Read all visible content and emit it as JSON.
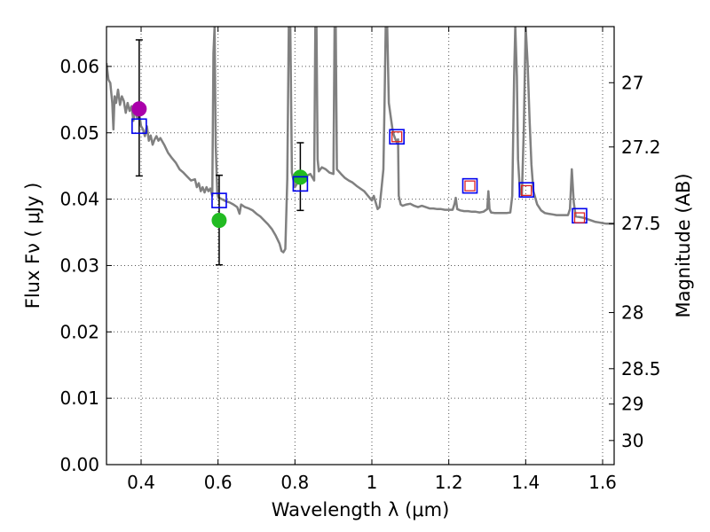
{
  "chart_data": {
    "type": "scatter",
    "xlabel": "Wavelength  λ (μm)",
    "ylabel": "Flux  Fν  ( μJy )",
    "y2label": "Magnitude (AB)",
    "xlim": [
      0.31,
      1.63
    ],
    "ylim": [
      0.0,
      0.066
    ],
    "grid": true,
    "x_ticks": [
      {
        "v": 0.4,
        "label": "0.4"
      },
      {
        "v": 0.6,
        "label": "0.6"
      },
      {
        "v": 0.8,
        "label": "0.8"
      },
      {
        "v": 1.0,
        "label": "1"
      },
      {
        "v": 1.2,
        "label": "1.2"
      },
      {
        "v": 1.4,
        "label": "1.4"
      },
      {
        "v": 1.6,
        "label": "1.6"
      }
    ],
    "y_ticks": [
      {
        "v": 0.0,
        "label": "0.00"
      },
      {
        "v": 0.01,
        "label": "0.01"
      },
      {
        "v": 0.02,
        "label": "0.02"
      },
      {
        "v": 0.03,
        "label": "0.03"
      },
      {
        "v": 0.04,
        "label": "0.04"
      },
      {
        "v": 0.05,
        "label": "0.05"
      },
      {
        "v": 0.06,
        "label": "0.06"
      }
    ],
    "y2_ticks": [
      {
        "v": 27.0,
        "label": "27"
      },
      {
        "v": 27.2,
        "label": "27.2"
      },
      {
        "v": 27.5,
        "label": "27.5"
      },
      {
        "v": 28.0,
        "label": "28"
      },
      {
        "v": 28.5,
        "label": "28.5"
      },
      {
        "v": 29.0,
        "label": "29"
      },
      {
        "v": 30.0,
        "label": "30"
      }
    ],
    "model_spectrum": {
      "name": "SED model",
      "color": "#808080",
      "points": [
        [
          0.31,
          0.0605
        ],
        [
          0.315,
          0.058
        ],
        [
          0.32,
          0.0575
        ],
        [
          0.325,
          0.0545
        ],
        [
          0.328,
          0.0505
        ],
        [
          0.331,
          0.0555
        ],
        [
          0.335,
          0.0545
        ],
        [
          0.34,
          0.0565
        ],
        [
          0.345,
          0.0542
        ],
        [
          0.35,
          0.0555
        ],
        [
          0.355,
          0.0548
        ],
        [
          0.36,
          0.053
        ],
        [
          0.365,
          0.0545
        ],
        [
          0.37,
          0.0533
        ],
        [
          0.375,
          0.054
        ],
        [
          0.38,
          0.0518
        ],
        [
          0.385,
          0.0535
        ],
        [
          0.39,
          0.0522
        ],
        [
          0.395,
          0.053
        ],
        [
          0.4,
          0.051
        ],
        [
          0.405,
          0.0505
        ],
        [
          0.41,
          0.0495
        ],
        [
          0.415,
          0.051
        ],
        [
          0.42,
          0.0488
        ],
        [
          0.425,
          0.0496
        ],
        [
          0.43,
          0.0482
        ],
        [
          0.435,
          0.049
        ],
        [
          0.44,
          0.0495
        ],
        [
          0.445,
          0.0488
        ],
        [
          0.45,
          0.0492
        ],
        [
          0.46,
          0.0482
        ],
        [
          0.47,
          0.047
        ],
        [
          0.48,
          0.0462
        ],
        [
          0.49,
          0.0455
        ],
        [
          0.5,
          0.0445
        ],
        [
          0.51,
          0.044
        ],
        [
          0.52,
          0.0434
        ],
        [
          0.53,
          0.0428
        ],
        [
          0.54,
          0.043
        ],
        [
          0.545,
          0.0418
        ],
        [
          0.55,
          0.0424
        ],
        [
          0.555,
          0.0412
        ],
        [
          0.56,
          0.0418
        ],
        [
          0.565,
          0.041
        ],
        [
          0.57,
          0.0418
        ],
        [
          0.575,
          0.0412
        ],
        [
          0.58,
          0.0416
        ],
        [
          0.585,
          0.0405
        ],
        [
          0.588,
          0.062
        ],
        [
          0.591,
          0.066
        ],
        [
          0.594,
          0.048
        ],
        [
          0.598,
          0.041
        ],
        [
          0.6,
          0.0403
        ],
        [
          0.61,
          0.04
        ],
        [
          0.62,
          0.0397
        ],
        [
          0.63,
          0.0395
        ],
        [
          0.64,
          0.0392
        ],
        [
          0.65,
          0.0388
        ],
        [
          0.656,
          0.0378
        ],
        [
          0.66,
          0.0392
        ],
        [
          0.67,
          0.0388
        ],
        [
          0.68,
          0.0386
        ],
        [
          0.69,
          0.0383
        ],
        [
          0.7,
          0.0378
        ],
        [
          0.71,
          0.0374
        ],
        [
          0.72,
          0.0368
        ],
        [
          0.73,
          0.0362
        ],
        [
          0.74,
          0.0355
        ],
        [
          0.75,
          0.0345
        ],
        [
          0.76,
          0.0333
        ],
        [
          0.765,
          0.0322
        ],
        [
          0.77,
          0.032
        ],
        [
          0.775,
          0.0325
        ],
        [
          0.78,
          0.043
        ],
        [
          0.784,
          0.066
        ],
        [
          0.788,
          0.066
        ],
        [
          0.792,
          0.044
        ],
        [
          0.8,
          0.0418
        ],
        [
          0.81,
          0.0428
        ],
        [
          0.82,
          0.044
        ],
        [
          0.83,
          0.0435
        ],
        [
          0.84,
          0.0438
        ],
        [
          0.85,
          0.0428
        ],
        [
          0.853,
          0.066
        ],
        [
          0.856,
          0.066
        ],
        [
          0.859,
          0.046
        ],
        [
          0.862,
          0.0442
        ],
        [
          0.87,
          0.0448
        ],
        [
          0.88,
          0.0445
        ],
        [
          0.89,
          0.044
        ],
        [
          0.9,
          0.0438
        ],
        [
          0.903,
          0.066
        ],
        [
          0.906,
          0.066
        ],
        [
          0.909,
          0.0445
        ],
        [
          0.92,
          0.0438
        ],
        [
          0.93,
          0.0432
        ],
        [
          0.94,
          0.0428
        ],
        [
          0.95,
          0.0425
        ],
        [
          0.96,
          0.042
        ],
        [
          0.97,
          0.0416
        ],
        [
          0.98,
          0.0412
        ],
        [
          0.99,
          0.0405
        ],
        [
          1.0,
          0.0398
        ],
        [
          1.005,
          0.0405
        ],
        [
          1.01,
          0.0395
        ],
        [
          1.015,
          0.0385
        ],
        [
          1.02,
          0.0388
        ],
        [
          1.025,
          0.0415
        ],
        [
          1.03,
          0.0445
        ],
        [
          1.033,
          0.0545
        ],
        [
          1.036,
          0.066
        ],
        [
          1.04,
          0.066
        ],
        [
          1.044,
          0.0545
        ],
        [
          1.05,
          0.052
        ],
        [
          1.055,
          0.05
        ],
        [
          1.06,
          0.0492
        ],
        [
          1.065,
          0.0485
        ],
        [
          1.068,
          0.049
        ],
        [
          1.07,
          0.0405
        ],
        [
          1.075,
          0.0392
        ],
        [
          1.08,
          0.039
        ],
        [
          1.09,
          0.0392
        ],
        [
          1.1,
          0.0393
        ],
        [
          1.11,
          0.039
        ],
        [
          1.12,
          0.0388
        ],
        [
          1.13,
          0.039
        ],
        [
          1.14,
          0.0388
        ],
        [
          1.15,
          0.0386
        ],
        [
          1.16,
          0.0386
        ],
        [
          1.17,
          0.0385
        ],
        [
          1.18,
          0.0385
        ],
        [
          1.19,
          0.0384
        ],
        [
          1.2,
          0.0384
        ],
        [
          1.21,
          0.0384
        ],
        [
          1.215,
          0.0393
        ],
        [
          1.218,
          0.0402
        ],
        [
          1.222,
          0.0385
        ],
        [
          1.23,
          0.0383
        ],
        [
          1.24,
          0.0382
        ],
        [
          1.25,
          0.0382
        ],
        [
          1.26,
          0.0381
        ],
        [
          1.27,
          0.0381
        ],
        [
          1.28,
          0.038
        ],
        [
          1.29,
          0.0381
        ],
        [
          1.3,
          0.0385
        ],
        [
          1.303,
          0.0412
        ],
        [
          1.306,
          0.0385
        ],
        [
          1.31,
          0.038
        ],
        [
          1.32,
          0.0379
        ],
        [
          1.33,
          0.0379
        ],
        [
          1.34,
          0.0379
        ],
        [
          1.35,
          0.0379
        ],
        [
          1.36,
          0.038
        ],
        [
          1.365,
          0.0405
        ],
        [
          1.37,
          0.0585
        ],
        [
          1.373,
          0.066
        ],
        [
          1.377,
          0.0585
        ],
        [
          1.38,
          0.046
        ],
        [
          1.385,
          0.0412
        ],
        [
          1.39,
          0.0405
        ],
        [
          1.395,
          0.0505
        ],
        [
          1.4,
          0.066
        ],
        [
          1.405,
          0.0605
        ],
        [
          1.41,
          0.052
        ],
        [
          1.415,
          0.0452
        ],
        [
          1.42,
          0.0412
        ],
        [
          1.43,
          0.0392
        ],
        [
          1.44,
          0.0383
        ],
        [
          1.45,
          0.0379
        ],
        [
          1.46,
          0.0378
        ],
        [
          1.47,
          0.0377
        ],
        [
          1.48,
          0.0376
        ],
        [
          1.49,
          0.0376
        ],
        [
          1.5,
          0.0376
        ],
        [
          1.51,
          0.0376
        ],
        [
          1.515,
          0.0385
        ],
        [
          1.52,
          0.0445
        ],
        [
          1.525,
          0.0395
        ],
        [
          1.53,
          0.0374
        ],
        [
          1.54,
          0.0373
        ],
        [
          1.55,
          0.0372
        ],
        [
          1.56,
          0.037
        ],
        [
          1.57,
          0.0368
        ],
        [
          1.58,
          0.0366
        ],
        [
          1.59,
          0.0365
        ],
        [
          1.6,
          0.0364
        ],
        [
          1.61,
          0.0363
        ],
        [
          1.62,
          0.0363
        ],
        [
          1.63,
          0.0363
        ]
      ]
    },
    "observed_filled": [
      {
        "x": 0.395,
        "y": 0.0536,
        "color": "#aa00aa"
      },
      {
        "x": 0.603,
        "y": 0.0368,
        "color": "#22bb22"
      },
      {
        "x": 0.814,
        "y": 0.0433,
        "color": "#22bb22"
      }
    ],
    "error_bars": [
      {
        "x": 0.395,
        "low": 0.0435,
        "high": 0.064
      },
      {
        "x": 0.603,
        "low": 0.0301,
        "high": 0.0436
      },
      {
        "x": 0.814,
        "low": 0.0383,
        "high": 0.0485
      }
    ],
    "model_photometry_blue": [
      {
        "x": 0.395,
        "y": 0.051
      },
      {
        "x": 0.603,
        "y": 0.0398
      },
      {
        "x": 0.814,
        "y": 0.0423
      },
      {
        "x": 1.065,
        "y": 0.0494
      },
      {
        "x": 1.255,
        "y": 0.042
      },
      {
        "x": 1.402,
        "y": 0.0414
      },
      {
        "x": 1.54,
        "y": 0.0375
      }
    ],
    "observed_red_open": [
      {
        "x": 1.065,
        "y": 0.0494
      },
      {
        "x": 1.255,
        "y": 0.042
      },
      {
        "x": 1.402,
        "y": 0.0413
      },
      {
        "x": 1.54,
        "y": 0.0372
      }
    ]
  }
}
